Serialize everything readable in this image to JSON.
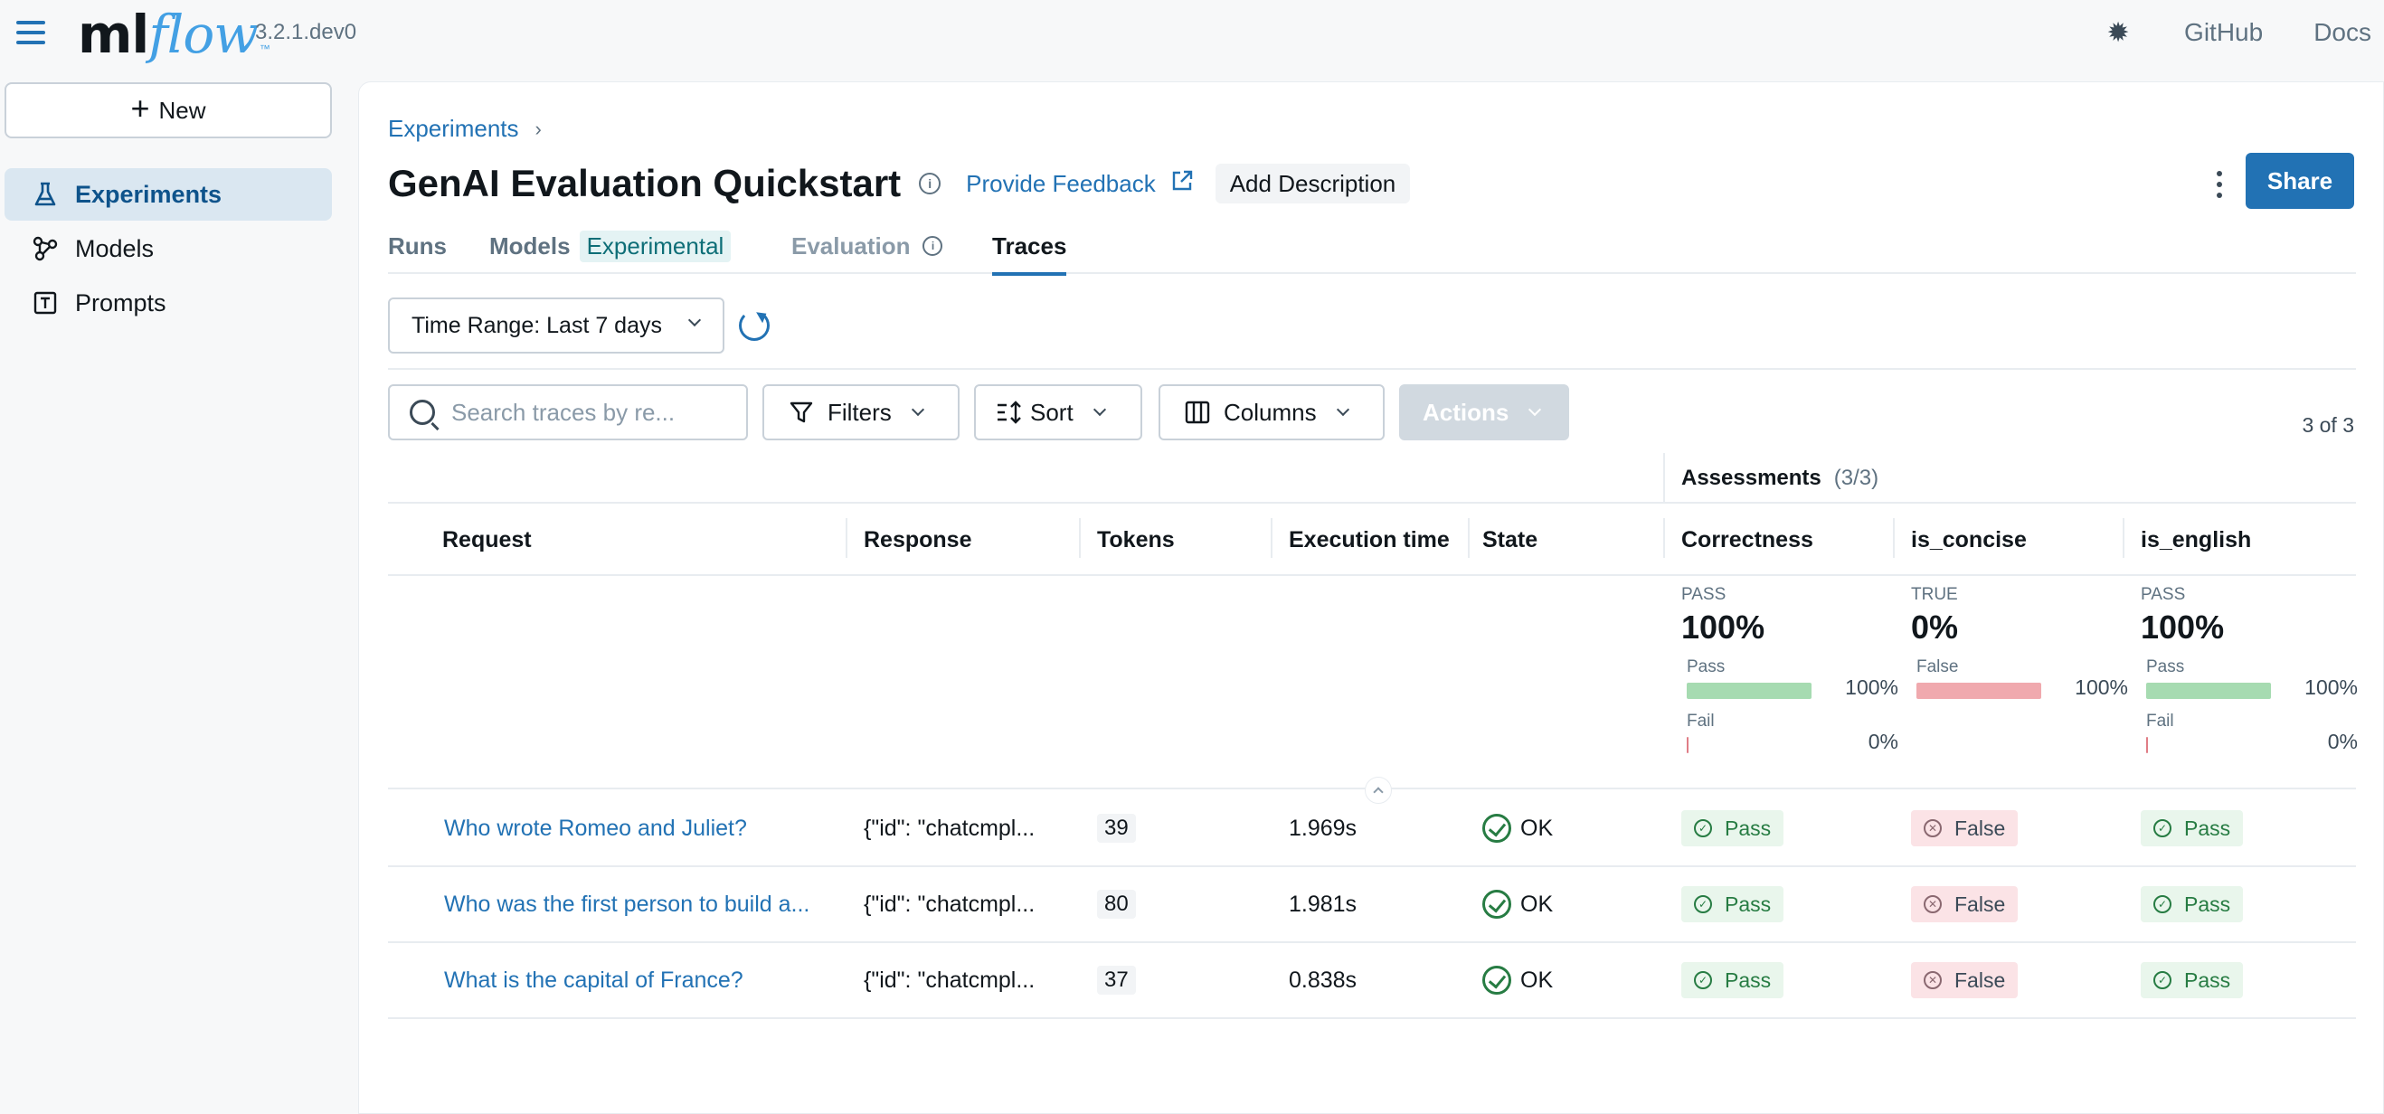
{
  "app": {
    "logo_ml": "ml",
    "logo_flow": "flow",
    "version": "3.2.1.dev0",
    "github": "GitHub",
    "docs": "Docs"
  },
  "sidebar": {
    "new_label": "New",
    "items": [
      {
        "label": "Experiments",
        "icon": "beaker-icon",
        "active": true
      },
      {
        "label": "Models",
        "icon": "models-icon",
        "active": false
      },
      {
        "label": "Prompts",
        "icon": "prompt-icon",
        "active": false
      }
    ]
  },
  "header": {
    "breadcrumb": "Experiments",
    "title": "GenAI Evaluation Quickstart",
    "feedback": "Provide Feedback",
    "add_description": "Add Description",
    "share": "Share"
  },
  "tabs": [
    {
      "label": "Runs"
    },
    {
      "label": "Models",
      "tag": "Experimental"
    },
    {
      "label": "Evaluation"
    },
    {
      "label": "Traces",
      "active": true
    }
  ],
  "filters": {
    "time_range": "Time Range: Last 7 days",
    "search_placeholder": "Search traces by re...",
    "filters": "Filters",
    "sort": "Sort",
    "columns": "Columns",
    "actions": "Actions",
    "count": "3 of 3"
  },
  "table": {
    "assessments_label": "Assessments",
    "assessments_count": "(3/3)",
    "headers": {
      "request": "Request",
      "response": "Response",
      "tokens": "Tokens",
      "execution_time": "Execution time",
      "state": "State",
      "correctness": "Correctness",
      "is_concise": "is_concise",
      "is_english": "is_english"
    },
    "summary": [
      {
        "key": "PASS",
        "pct": "100%",
        "bars": [
          {
            "label": "Pass",
            "value": "100%",
            "fraction": 1.0,
            "color": "#a6dbb1"
          },
          {
            "label": "Fail",
            "value": "0%",
            "fraction": 0,
            "color": "#e07d86"
          }
        ]
      },
      {
        "key": "TRUE",
        "pct": "0%",
        "bars": [
          {
            "label": "False",
            "value": "100%",
            "fraction": 1.0,
            "color": "#f0a9ae"
          }
        ]
      },
      {
        "key": "PASS",
        "pct": "100%",
        "bars": [
          {
            "label": "Pass",
            "value": "100%",
            "fraction": 1.0,
            "color": "#a6dbb1"
          },
          {
            "label": "Fail",
            "value": "0%",
            "fraction": 0,
            "color": "#e07d86"
          }
        ]
      }
    ],
    "rows": [
      {
        "request": "Who wrote Romeo and Juliet?",
        "response": "{\"id\": \"chatcmpl...",
        "tokens": "39",
        "exec": "1.969s",
        "state": "OK",
        "correctness": "Pass",
        "is_concise": "False",
        "is_english": "Pass"
      },
      {
        "request": "Who was the first person to build a...",
        "response": "{\"id\": \"chatcmpl...",
        "tokens": "80",
        "exec": "1.981s",
        "state": "OK",
        "correctness": "Pass",
        "is_concise": "False",
        "is_english": "Pass"
      },
      {
        "request": "What is the capital of France?",
        "response": "{\"id\": \"chatcmpl...",
        "tokens": "37",
        "exec": "0.838s",
        "state": "OK",
        "correctness": "Pass",
        "is_concise": "False",
        "is_english": "Pass"
      }
    ]
  }
}
